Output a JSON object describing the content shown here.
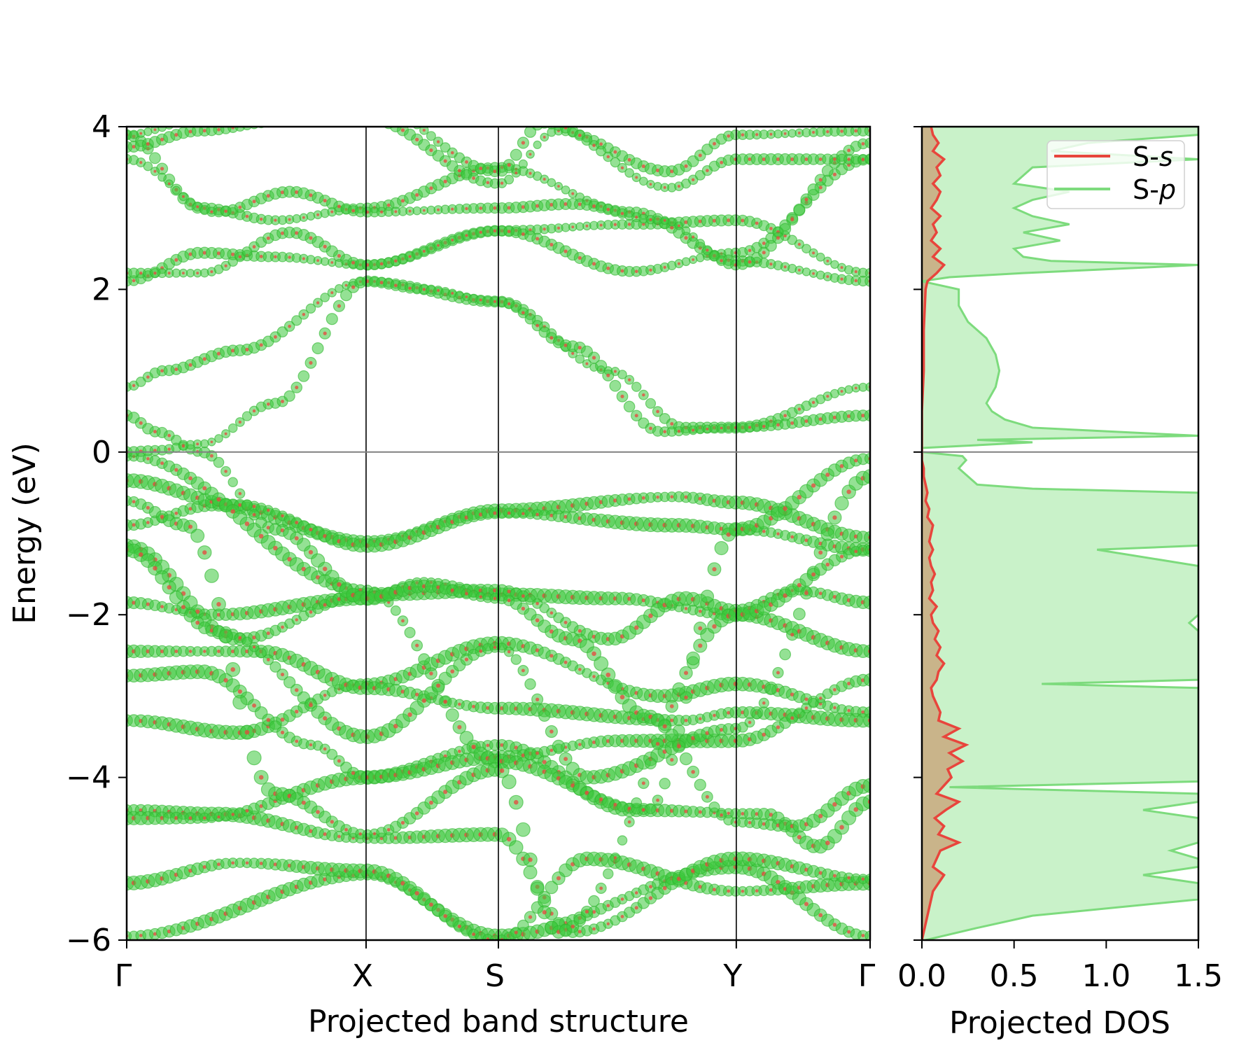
{
  "chart_data": [
    {
      "type": "scatter",
      "panel": "band-structure",
      "xlabel": "Projected band structure",
      "ylabel": "Energy (eV)",
      "ylim": [
        -6,
        4
      ],
      "yticks": [
        4,
        2,
        0,
        -2,
        -4,
        -6
      ],
      "ytick_labels": [
        "4",
        "2",
        "0",
        "−2",
        "−4",
        "−6"
      ],
      "kpath": [
        {
          "label": "Γ",
          "k": 0.0
        },
        {
          "label": "X",
          "k": 0.322
        },
        {
          "label": "S",
          "k": 0.5
        },
        {
          "label": "Y",
          "k": 0.82
        },
        {
          "label": "Γ",
          "k": 1.0
        }
      ],
      "fermi_level": 0,
      "colors": {
        "S-s": "#e8453c",
        "S-p": "#3cc83c"
      },
      "bands": [
        {
          "k": [
            0,
            0.322,
            0.5,
            0.82,
            1.0
          ],
          "E": [
            -5.95,
            -5.2,
            -5.95,
            -5.1,
            -5.95
          ]
        },
        {
          "k": [
            0,
            0.15,
            0.322,
            0.5,
            0.62,
            0.82,
            1.0
          ],
          "E": [
            -5.3,
            -5.05,
            -5.15,
            -6.0,
            -5.0,
            -5.4,
            -5.3
          ]
        },
        {
          "k": [
            0,
            0.12,
            0.322,
            0.5,
            0.6,
            0.82,
            1.0
          ],
          "E": [
            -4.4,
            -4.45,
            -4.75,
            -4.7,
            -5.9,
            -5.0,
            -5.25
          ]
        },
        {
          "k": [
            0,
            0.1,
            0.322,
            0.5,
            0.68,
            0.86,
            0.93,
            1.0
          ],
          "E": [
            -4.5,
            -4.5,
            -4.0,
            -3.6,
            -4.4,
            -4.45,
            -4.85,
            -4.3
          ]
        },
        {
          "k": [
            0,
            0.15,
            0.322,
            0.5,
            0.72,
            0.82,
            1.0
          ],
          "E": [
            -3.3,
            -3.45,
            -2.85,
            -2.35,
            -3.0,
            -2.85,
            -3.2
          ]
        },
        {
          "k": [
            0,
            0.18,
            0.322,
            0.5,
            0.75,
            0.82,
            1.0
          ],
          "E": [
            -2.45,
            -2.45,
            -2.9,
            -3.15,
            -3.3,
            -3.2,
            -3.3
          ]
        },
        {
          "k": [
            0,
            0.1,
            0.25,
            0.322,
            0.5,
            0.66,
            0.82,
            1.0
          ],
          "E": [
            -2.75,
            -2.7,
            -3.6,
            -4.0,
            -3.75,
            -3.55,
            -3.55,
            -2.8
          ]
        },
        {
          "k": [
            0,
            0.12,
            0.322,
            0.4,
            0.5,
            0.66,
            0.82,
            1.0
          ],
          "E": [
            -1.85,
            -2.0,
            -1.8,
            -1.6,
            -1.75,
            -1.8,
            -2.0,
            -2.45
          ]
        },
        {
          "k": [
            0,
            0.15,
            0.322,
            0.5,
            0.65,
            0.75,
            0.82,
            0.9,
            1.0
          ],
          "E": [
            -1.15,
            -2.3,
            -1.75,
            -1.7,
            -2.3,
            -1.8,
            -1.95,
            -1.7,
            -1.85
          ]
        },
        {
          "k": [
            0,
            0.12,
            0.322,
            0.5,
            0.74,
            0.82,
            1.0
          ],
          "E": [
            -0.9,
            -0.65,
            -1.1,
            -0.72,
            -0.55,
            -0.62,
            -1.05
          ]
        },
        {
          "k": [
            0,
            0.15,
            0.322,
            0.5,
            0.74,
            0.82,
            1.0
          ],
          "E": [
            -0.35,
            -0.65,
            -1.15,
            -0.75,
            -0.9,
            -0.95,
            -1.2
          ]
        },
        {
          "k": [
            0,
            0.322,
            0.5,
            0.7,
            0.82,
            1.0
          ],
          "E": [
            -0.05,
            -1.7,
            -3.8,
            -4.4,
            -0.95,
            -0.08
          ]
        },
        {
          "k": [
            0,
            0.12,
            0.322,
            0.5,
            0.62,
            0.82,
            1.0
          ],
          "E": [
            -1.2,
            -2.2,
            -3.5,
            -2.4,
            -4.0,
            -3.4,
            -0.3
          ]
        },
        {
          "k": [
            0,
            0.08,
            0.2,
            0.322,
            0.5,
            0.58,
            0.82,
            1.0
          ],
          "E": [
            -0.6,
            -0.9,
            -4.2,
            -4.7,
            -3.9,
            -5.9,
            -2.0,
            -1.2
          ]
        },
        {
          "k": [
            0,
            0.04,
            0.1,
            0.2,
            0.322,
            0.4,
            0.5,
            0.6,
            0.7,
            0.82,
            0.9,
            1.0
          ],
          "E": [
            0.45,
            0.25,
            0.0,
            -0.95,
            -1.8,
            -1.65,
            -1.8,
            -2.3,
            -3.25,
            -4.55,
            -4.6,
            -4.1
          ]
        },
        {
          "k": [
            0,
            0.05,
            0.15,
            0.322,
            0.5,
            0.65,
            0.75,
            0.82,
            1.0
          ],
          "E": [
            0.8,
            1.0,
            1.25,
            2.1,
            1.85,
            1.0,
            0.3,
            0.3,
            0.8
          ]
        },
        {
          "k": [
            0,
            0.04,
            0.1,
            0.2,
            0.322,
            0.4,
            0.5,
            0.6,
            0.72,
            0.82,
            1.0
          ],
          "E": [
            0.0,
            0.02,
            0.1,
            0.6,
            2.1,
            2.0,
            1.85,
            1.3,
            0.25,
            0.3,
            0.45
          ]
        },
        {
          "k": [
            0,
            0.1,
            0.2,
            0.322,
            0.5,
            0.68,
            0.82,
            1.0
          ],
          "E": [
            2.1,
            2.45,
            2.4,
            2.3,
            2.72,
            2.8,
            2.85,
            2.2
          ]
        },
        {
          "k": [
            0,
            0.1,
            0.22,
            0.322,
            0.5,
            0.68,
            0.82,
            1.0
          ],
          "E": [
            2.2,
            2.2,
            2.7,
            2.3,
            2.72,
            2.22,
            2.45,
            3.6
          ]
        },
        {
          "k": [
            0,
            0.1,
            0.2,
            0.322,
            0.5,
            0.68,
            0.82,
            1.0
          ],
          "E": [
            3.9,
            3.0,
            2.85,
            3.0,
            3.5,
            2.95,
            2.35,
            2.1
          ]
        },
        {
          "k": [
            0,
            0.12,
            0.22,
            0.322,
            0.5,
            0.6,
            0.72,
            0.82,
            1.0
          ],
          "E": [
            3.6,
            2.95,
            3.2,
            2.95,
            3.0,
            3.05,
            2.85,
            2.3,
            3.8
          ]
        },
        {
          "k": [
            0,
            0.1,
            0.2,
            0.322,
            0.5,
            0.58,
            0.73,
            0.82,
            1.0
          ],
          "E": [
            3.75,
            3.95,
            4.05,
            4.1,
            3.3,
            3.95,
            3.45,
            3.9,
            3.95
          ]
        },
        {
          "k": [
            0,
            0.1,
            0.2,
            0.322,
            0.5,
            0.56,
            0.73,
            0.82,
            1.0
          ],
          "E": [
            3.9,
            4.1,
            4.2,
            4.3,
            3.45,
            4.05,
            3.25,
            3.6,
            3.6
          ]
        }
      ]
    },
    {
      "type": "area",
      "panel": "pdos",
      "xlabel": "Projected DOS",
      "xlim": [
        0,
        1.5
      ],
      "xticks": [
        0,
        0.5,
        1.0,
        1.5
      ],
      "xtick_labels": [
        "0.0",
        "0.5",
        "1.0",
        "1.5"
      ],
      "ylim": [
        -6,
        4
      ],
      "legend_position": "top-right",
      "series": [
        {
          "name": "S-s",
          "color": "#e8453c",
          "fill": "#c9b48a",
          "E": [
            -6.0,
            -5.8,
            -5.6,
            -5.4,
            -5.2,
            -5.1,
            -5.0,
            -4.9,
            -4.8,
            -4.7,
            -4.6,
            -4.5,
            -4.4,
            -4.3,
            -4.2,
            -4.1,
            -4.0,
            -3.9,
            -3.8,
            -3.7,
            -3.6,
            -3.5,
            -3.4,
            -3.3,
            -3.2,
            -3.1,
            -3.0,
            -2.9,
            -2.8,
            -2.7,
            -2.6,
            -2.5,
            -2.4,
            -2.3,
            -2.2,
            -2.1,
            -2.0,
            -1.9,
            -1.8,
            -1.7,
            -1.6,
            -1.5,
            -1.4,
            -1.3,
            -1.2,
            -1.1,
            -1.0,
            -0.9,
            -0.8,
            -0.7,
            -0.6,
            -0.5,
            -0.4,
            -0.3,
            -0.2,
            -0.1,
            0.0,
            0.1,
            0.5,
            1.0,
            1.5,
            2.0,
            2.1,
            2.2,
            2.3,
            2.4,
            2.5,
            2.6,
            2.7,
            2.8,
            2.9,
            3.0,
            3.1,
            3.2,
            3.3,
            3.4,
            3.5,
            3.6,
            3.7,
            3.8,
            3.9,
            4.0
          ],
          "dos": [
            0.0,
            0.02,
            0.04,
            0.06,
            0.12,
            0.06,
            0.08,
            0.1,
            0.2,
            0.09,
            0.12,
            0.07,
            0.13,
            0.2,
            0.08,
            0.12,
            0.16,
            0.14,
            0.22,
            0.15,
            0.24,
            0.12,
            0.2,
            0.09,
            0.1,
            0.08,
            0.06,
            0.05,
            0.08,
            0.09,
            0.12,
            0.08,
            0.1,
            0.07,
            0.09,
            0.06,
            0.05,
            0.08,
            0.04,
            0.06,
            0.05,
            0.07,
            0.05,
            0.04,
            0.06,
            0.04,
            0.05,
            0.06,
            0.03,
            0.04,
            0.02,
            0.03,
            0.02,
            0.01,
            0.01,
            0.0,
            0.0,
            0.0,
            0.0,
            0.01,
            0.01,
            0.02,
            0.03,
            0.08,
            0.12,
            0.06,
            0.1,
            0.05,
            0.08,
            0.06,
            0.1,
            0.05,
            0.08,
            0.1,
            0.06,
            0.1,
            0.08,
            0.12,
            0.06,
            0.09,
            0.06,
            0.05
          ]
        },
        {
          "name": "S-p",
          "color": "#7ddb7d",
          "fill": "#c9f2c9",
          "E": [
            -6.0,
            -5.85,
            -5.7,
            -5.5,
            -5.3,
            -5.2,
            -5.1,
            -5.0,
            -4.9,
            -4.8,
            -4.7,
            -4.6,
            -4.5,
            -4.4,
            -4.3,
            -4.2,
            -4.12,
            -4.05,
            -4.0,
            -3.8,
            -3.6,
            -3.4,
            -3.2,
            -3.0,
            -2.9,
            -2.85,
            -2.8,
            -2.6,
            -2.4,
            -2.2,
            -2.1,
            -2.0,
            -1.9,
            -1.8,
            -1.6,
            -1.4,
            -1.2,
            -1.15,
            -1.1,
            -1.0,
            -0.8,
            -0.6,
            -0.5,
            -0.45,
            -0.4,
            -0.3,
            -0.2,
            -0.1,
            -0.05,
            0.0,
            0.05,
            0.12,
            0.15,
            0.2,
            0.3,
            0.4,
            0.5,
            0.6,
            0.8,
            1.0,
            1.2,
            1.4,
            1.6,
            1.8,
            2.0,
            2.1,
            2.15,
            2.2,
            2.3,
            2.35,
            2.4,
            2.5,
            2.6,
            2.7,
            2.8,
            2.9,
            3.0,
            3.1,
            3.2,
            3.3,
            3.5,
            3.6,
            3.7,
            3.8,
            3.9,
            4.0
          ],
          "dos": [
            0.02,
            0.3,
            0.6,
            1.5,
            1.5,
            1.2,
            1.5,
            1.5,
            1.35,
            1.5,
            1.5,
            1.5,
            1.5,
            1.2,
            1.5,
            1.5,
            0.15,
            1.5,
            1.5,
            1.5,
            1.5,
            1.5,
            1.5,
            1.5,
            1.5,
            0.65,
            1.5,
            1.5,
            1.5,
            1.5,
            1.45,
            1.5,
            1.5,
            1.5,
            1.5,
            1.5,
            0.95,
            1.5,
            1.5,
            1.5,
            1.5,
            1.5,
            1.5,
            0.6,
            0.3,
            0.25,
            0.2,
            0.24,
            0.22,
            0.0,
            0.0,
            0.6,
            0.3,
            1.5,
            0.6,
            0.45,
            0.38,
            0.35,
            0.4,
            0.42,
            0.4,
            0.35,
            0.25,
            0.2,
            0.2,
            0.0,
            0.15,
            0.55,
            1.5,
            0.7,
            0.55,
            0.5,
            0.75,
            0.55,
            0.8,
            0.6,
            0.5,
            0.6,
            0.8,
            0.5,
            0.6,
            1.5,
            0.7,
            0.9,
            1.5,
            1.5
          ]
        }
      ]
    }
  ]
}
